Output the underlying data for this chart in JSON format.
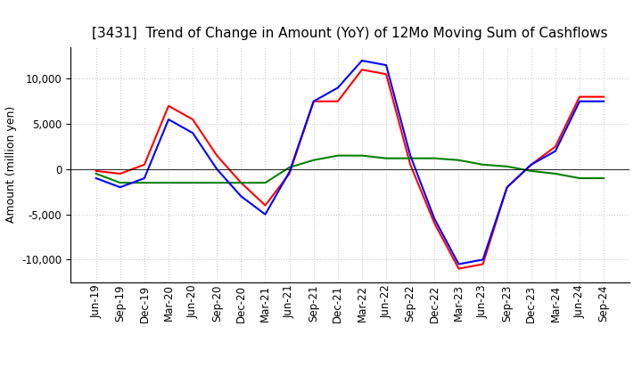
{
  "title": "[3431]  Trend of Change in Amount (YoY) of 12Mo Moving Sum of Cashflows",
  "ylabel": "Amount (million yen)",
  "x_labels": [
    "Jun-19",
    "Sep-19",
    "Dec-19",
    "Mar-20",
    "Jun-20",
    "Sep-20",
    "Dec-20",
    "Mar-21",
    "Jun-21",
    "Sep-21",
    "Dec-21",
    "Mar-22",
    "Jun-22",
    "Sep-22",
    "Dec-22",
    "Mar-23",
    "Jun-23",
    "Sep-23",
    "Dec-23",
    "Mar-24",
    "Jun-24",
    "Sep-24"
  ],
  "operating": [
    -200,
    -500,
    500,
    7000,
    5500,
    1500,
    -1500,
    -4000,
    -500,
    7500,
    7500,
    11000,
    10500,
    500,
    -6000,
    -11000,
    -10500,
    -2000,
    500,
    2500,
    8000,
    8000
  ],
  "investing": [
    -500,
    -1500,
    -1500,
    -1500,
    -1500,
    -1500,
    -1500,
    -1500,
    200,
    1000,
    1500,
    1500,
    1200,
    1200,
    1200,
    1000,
    500,
    300,
    -200,
    -500,
    -1000,
    -1000
  ],
  "free": [
    -1000,
    -2000,
    -1000,
    5500,
    4000,
    0,
    -3000,
    -5000,
    -300,
    7500,
    9000,
    12000,
    11500,
    1500,
    -5500,
    -10500,
    -10000,
    -2000,
    500,
    2000,
    7500,
    7500
  ],
  "operating_color": "#FF0000",
  "investing_color": "#008000",
  "free_color": "#0000FF",
  "ylim": [
    -12500,
    13500
  ],
  "yticks": [
    -10000,
    -5000,
    0,
    5000,
    10000
  ],
  "background_color": "#FFFFFF",
  "grid_color": "#CCCCCC",
  "title_fontsize": 11,
  "label_fontsize": 9,
  "tick_fontsize": 8.5
}
